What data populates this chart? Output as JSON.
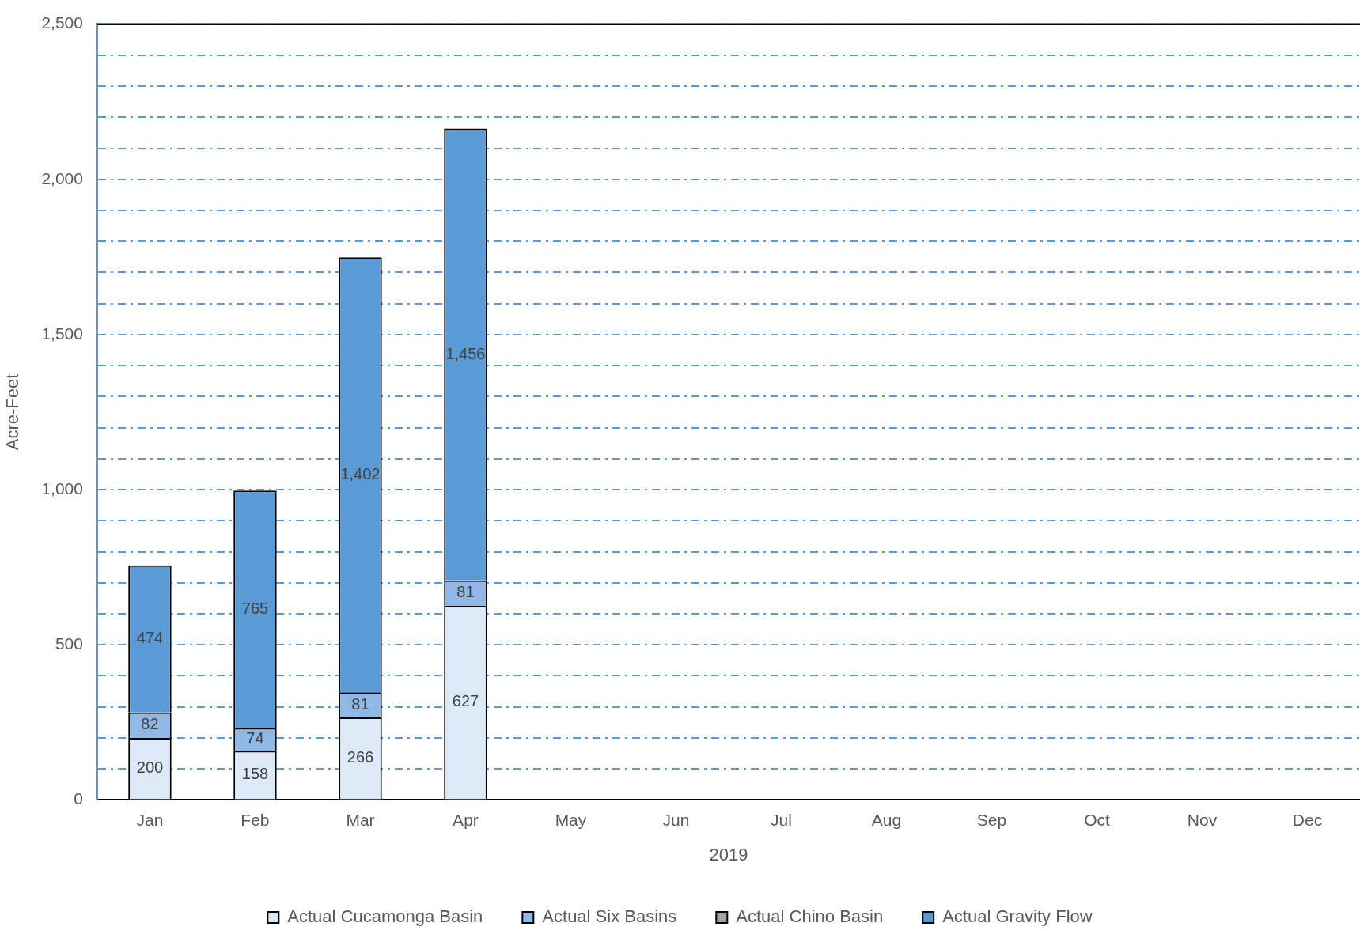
{
  "chart_data": {
    "type": "bar",
    "stacked": true,
    "xlabel": "2019",
    "ylabel": "Acre-Feet",
    "categories": [
      "Jan",
      "Feb",
      "Mar",
      "Apr",
      "May",
      "Jun",
      "Jul",
      "Aug",
      "Sep",
      "Oct",
      "Nov",
      "Dec"
    ],
    "series": [
      {
        "name": "Actual Cucamonga Basin",
        "color": "#dce9f7",
        "values": [
          200,
          158,
          266,
          627,
          null,
          null,
          null,
          null,
          null,
          null,
          null,
          null
        ],
        "value_labels": [
          "200",
          "158",
          "266",
          "627",
          null,
          null,
          null,
          null,
          null,
          null,
          null,
          null
        ]
      },
      {
        "name": "Actual Six Basins",
        "color": "#8fb8e6",
        "values": [
          82,
          74,
          81,
          81,
          null,
          null,
          null,
          null,
          null,
          null,
          null,
          null
        ],
        "value_labels": [
          "82",
          "74",
          "81",
          "81",
          null,
          null,
          null,
          null,
          null,
          null,
          null,
          null
        ]
      },
      {
        "name": "Actual Chino Basin",
        "color": "#a6a6a6",
        "values": [
          null,
          null,
          null,
          null,
          null,
          null,
          null,
          null,
          null,
          null,
          null,
          null
        ]
      },
      {
        "name": "Actual Gravity Flow",
        "color": "#5b9bd5",
        "values": [
          474,
          765,
          1402,
          1456,
          null,
          null,
          null,
          null,
          null,
          null,
          null,
          null
        ],
        "value_labels": [
          "474",
          "765",
          "1,402",
          "1,456",
          null,
          null,
          null,
          null,
          null,
          null,
          null,
          null
        ]
      }
    ],
    "ylim": [
      0,
      2500
    ],
    "yticks": [
      0,
      {
        "value": 100,
        "label": null
      },
      {
        "value": 200,
        "label": null
      },
      {
        "value": 300,
        "label": null
      },
      {
        "value": 400,
        "label": null
      },
      {
        "value": 500,
        "label": "500"
      },
      {
        "value": 600,
        "label": null
      },
      {
        "value": 700,
        "label": null
      },
      {
        "value": 800,
        "label": null
      },
      {
        "value": 900,
        "label": null
      },
      {
        "value": 1000,
        "label": "1,000"
      },
      {
        "value": 1100,
        "label": null
      },
      {
        "value": 1200,
        "label": null
      },
      {
        "value": 1300,
        "label": null
      },
      {
        "value": 1400,
        "label": null
      },
      {
        "value": 1500,
        "label": "1,500"
      },
      {
        "value": 1600,
        "label": null
      },
      {
        "value": 1700,
        "label": null
      },
      {
        "value": 1800,
        "label": null
      },
      {
        "value": 1900,
        "label": null
      },
      {
        "value": 2000,
        "label": "2,000"
      },
      {
        "value": 2100,
        "label": null
      },
      {
        "value": 2200,
        "label": null
      },
      {
        "value": 2300,
        "label": null
      },
      {
        "value": 2400,
        "label": null
      },
      {
        "value": 2500,
        "label": "2,500"
      }
    ],
    "grid": "y",
    "legend": "bottom"
  }
}
